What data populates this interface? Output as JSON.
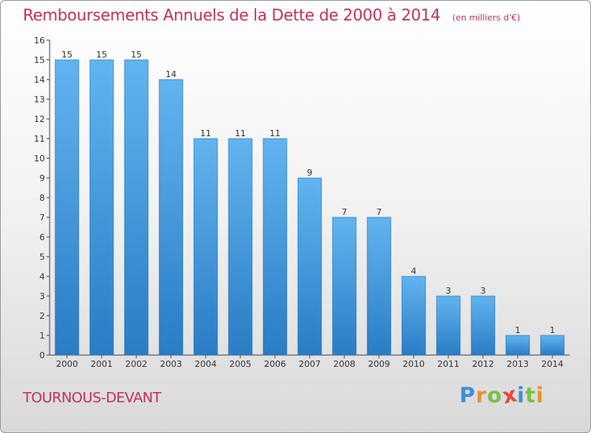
{
  "title": "Remboursements Annuels de la Dette de 2000 à 2014",
  "subtitle": "(en milliers d'€)",
  "commune": "TOURNOUS-DEVANT",
  "logo": {
    "letters": [
      "P",
      "r",
      "o",
      "x",
      "i",
      "t",
      "i"
    ],
    "colors": [
      "#3b8fd9",
      "#e8922b",
      "#7cc043",
      "#e4493a",
      "#3b8fd9",
      "#7cc043",
      "#e8922b"
    ]
  },
  "chart_data": {
    "type": "bar",
    "categories": [
      "2000",
      "2001",
      "2002",
      "2003",
      "2004",
      "2005",
      "2006",
      "2007",
      "2008",
      "2009",
      "2010",
      "2011",
      "2012",
      "2013",
      "2014"
    ],
    "values": [
      15,
      15,
      15,
      14,
      11,
      11,
      11,
      9,
      7,
      7,
      4,
      3,
      3,
      1,
      1
    ],
    "ylim": [
      0,
      16
    ],
    "yticks": [
      0,
      1,
      2,
      3,
      4,
      5,
      6,
      7,
      8,
      9,
      10,
      11,
      12,
      13,
      14,
      15,
      16
    ],
    "data_labels": true,
    "grid": false,
    "colors": {
      "bar_light": "#62b4ef",
      "bar_dark": "#2a7cc4",
      "bar_edge": "#2070b8"
    }
  }
}
